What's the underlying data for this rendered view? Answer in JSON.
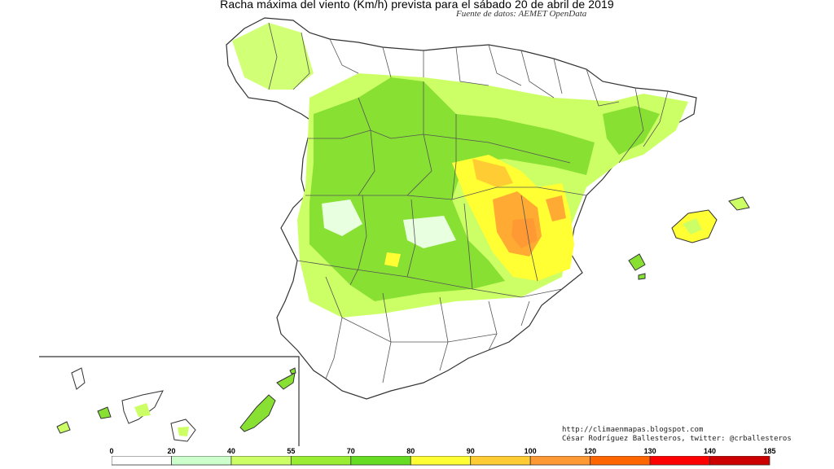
{
  "title": "Racha máxima del viento (Km/h) prevista para el sábado 20 de abril de 2019",
  "subtitle": "Fuente de datos: AEMET OpenData",
  "credit": {
    "line1": "http://climaenmapas.blogspot.com",
    "line2": "César Rodríguez Ballesteros, twitter: @crballesteros"
  },
  "legend": {
    "ticks": [
      "0",
      "20",
      "40",
      "55",
      "70",
      "80",
      "90",
      "100",
      "120",
      "130",
      "140",
      "185"
    ],
    "colors": [
      "#ffffff",
      "#ccffcc",
      "#ccff66",
      "#99ee33",
      "#66dd22",
      "#ffff33",
      "#ffcc33",
      "#ff9933",
      "#ff6600",
      "#ff0000",
      "#cc0000",
      "#990000"
    ]
  }
}
